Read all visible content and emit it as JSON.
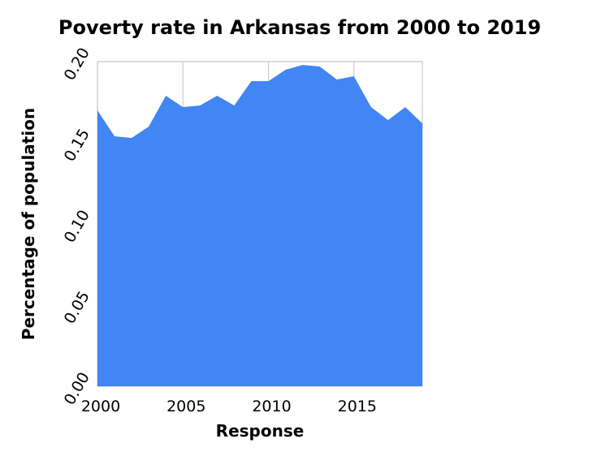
{
  "chart_data": {
    "type": "area",
    "title": "Poverty rate in Arkansas from 2000 to 2019",
    "xlabel": "Response",
    "ylabel": "Percentage of population",
    "x": [
      2000,
      2001,
      2002,
      2003,
      2004,
      2005,
      2006,
      2007,
      2008,
      2009,
      2010,
      2011,
      2012,
      2013,
      2014,
      2015,
      2016,
      2017,
      2018,
      2019
    ],
    "values": [
      0.17,
      0.154,
      0.153,
      0.16,
      0.179,
      0.172,
      0.173,
      0.179,
      0.173,
      0.188,
      0.188,
      0.195,
      0.198,
      0.197,
      0.189,
      0.191,
      0.172,
      0.164,
      0.172,
      0.162
    ],
    "xlim": [
      2000,
      2019
    ],
    "ylim": [
      0,
      0.2
    ],
    "x_ticks": [
      2000,
      2005,
      2010,
      2015
    ],
    "x_tick_labels": [
      "2000",
      "2005",
      "2010",
      "2015"
    ],
    "y_ticks": [
      0,
      0.05,
      0.1,
      0.15,
      0.2
    ],
    "y_tick_labels": [
      "0.00",
      "0.05",
      "0.10",
      "0.15",
      "0.20"
    ],
    "grid": true,
    "fill_color": "#4285f4"
  }
}
